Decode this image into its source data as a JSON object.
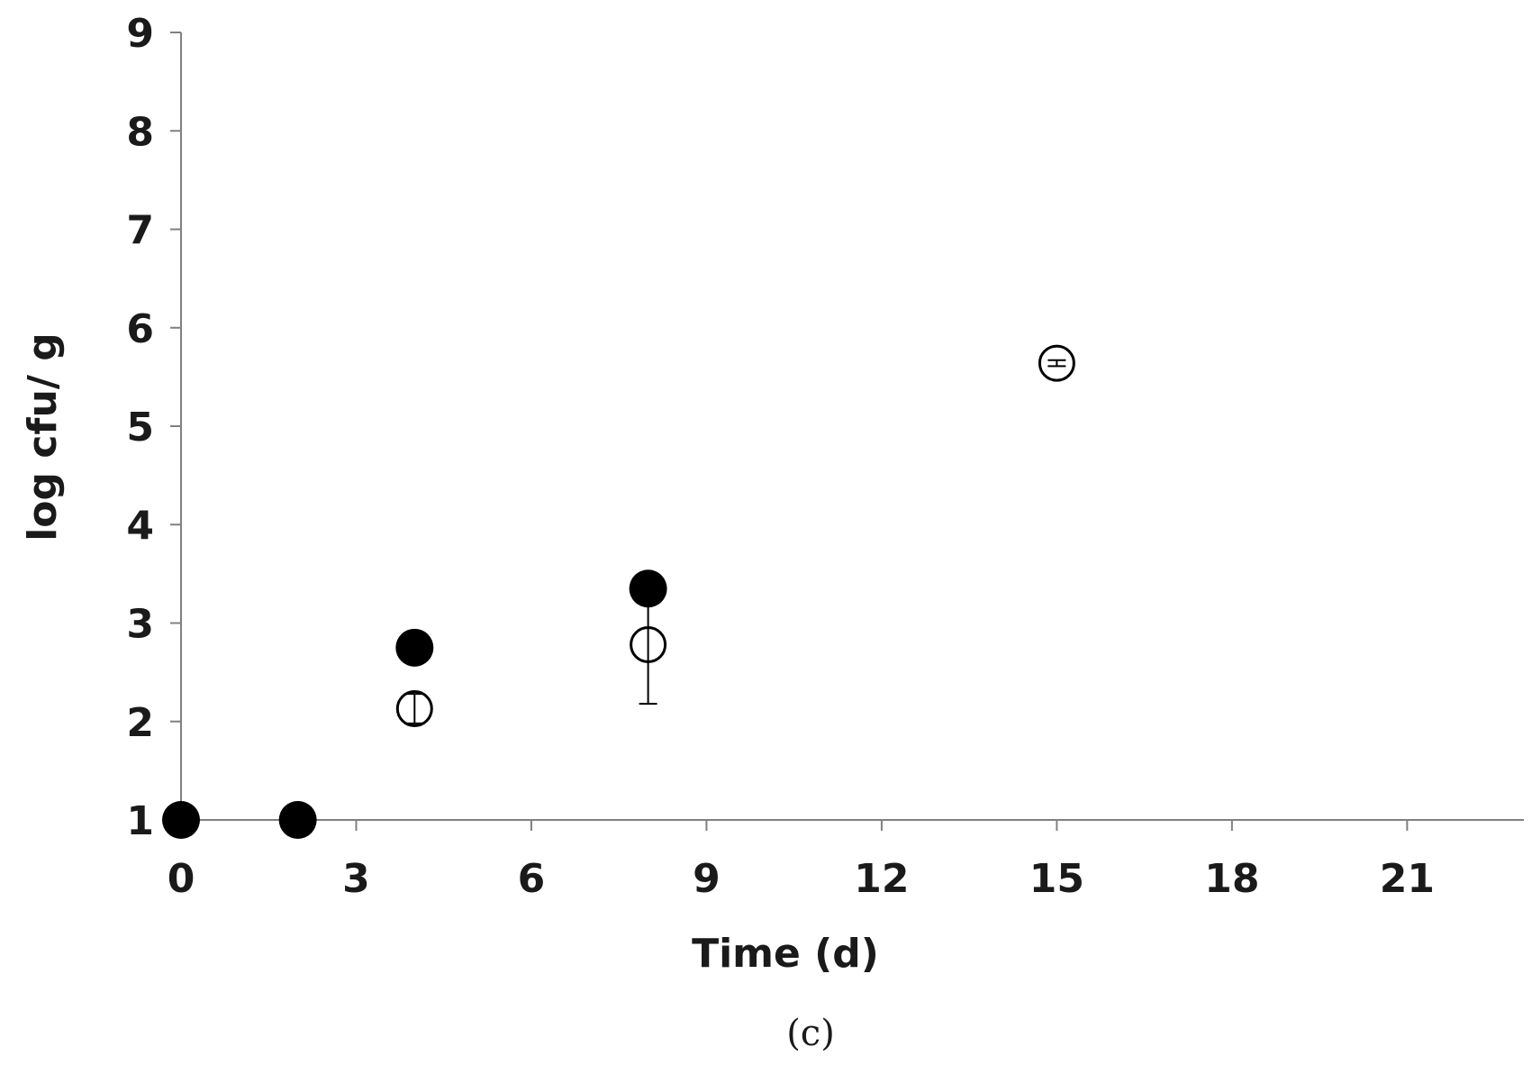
{
  "chart_data": {
    "type": "scatter",
    "title": "",
    "xlabel": "Time (d)",
    "ylabel": "log cfu/ g",
    "panel_label": "(c)",
    "xlim": [
      0,
      23
    ],
    "ylim": [
      1,
      9
    ],
    "x_ticks": [
      0,
      3,
      6,
      9,
      12,
      15,
      18,
      21
    ],
    "y_ticks": [
      1,
      2,
      3,
      4,
      5,
      6,
      7,
      8,
      9
    ],
    "grid": false,
    "legend": "none",
    "series": [
      {
        "marker": "filled-circle",
        "color": "#000000",
        "points": [
          {
            "x": 0,
            "y": 1.0
          },
          {
            "x": 2,
            "y": 1.0
          },
          {
            "x": 4,
            "y": 2.75
          },
          {
            "x": 8,
            "y": 3.35
          }
        ]
      },
      {
        "marker": "open-circle",
        "color": "#000000",
        "points": [
          {
            "x": 4,
            "y": 2.13,
            "err": 0.15
          },
          {
            "x": 8,
            "y": 2.78,
            "err": 0.6
          },
          {
            "x": 15,
            "y": 5.64,
            "err": 0.03
          }
        ]
      }
    ]
  }
}
